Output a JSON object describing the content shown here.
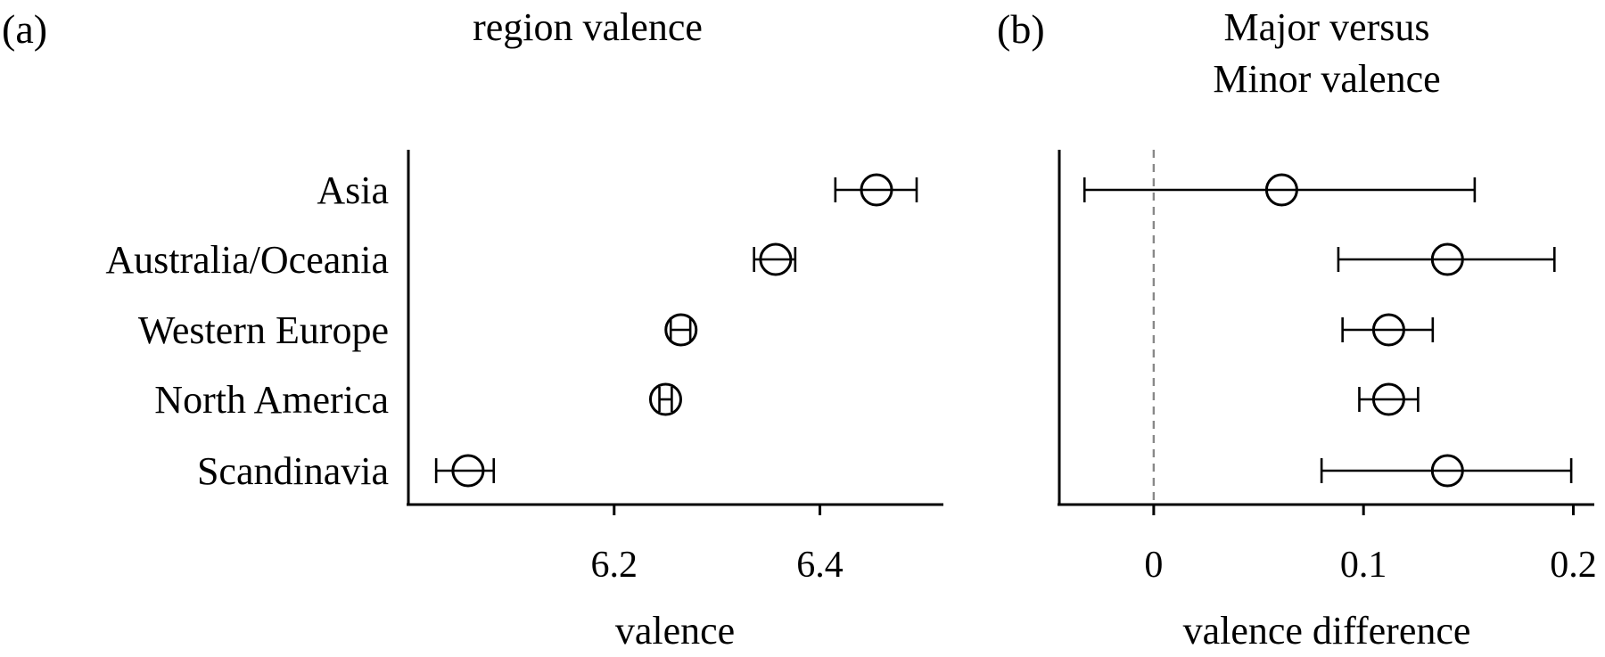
{
  "chart_data": [
    {
      "type": "scatter",
      "panel_label": "(a)",
      "title": "region valence",
      "xlabel": "valence",
      "ylabel": "",
      "categories": [
        "Asia",
        "Australia/Oceania",
        "Western Europe",
        "North America",
        "Scandinavia"
      ],
      "estimates": [
        6.455,
        6.357,
        6.265,
        6.25,
        6.058
      ],
      "ci_low": [
        6.415,
        6.336,
        6.255,
        6.244,
        6.027
      ],
      "ci_high": [
        6.494,
        6.376,
        6.274,
        6.256,
        6.083
      ],
      "xlim": [
        6.0,
        6.52
      ],
      "xticks": [
        6.2,
        6.4
      ],
      "xtick_labels": [
        "6.2",
        "6.4"
      ],
      "grid": false,
      "reference_line": null
    },
    {
      "type": "scatter",
      "panel_label": "(b)",
      "title": "Major versus Minor valence",
      "xlabel": "valence difference",
      "ylabel": "",
      "categories": [
        "Asia",
        "Australia/Oceania",
        "Western Europe",
        "North America",
        "Scandinavia"
      ],
      "estimates": [
        0.061,
        0.14,
        0.112,
        0.112,
        0.14
      ],
      "ci_low": [
        -0.033,
        0.088,
        0.09,
        0.098,
        0.08
      ],
      "ci_high": [
        0.153,
        0.191,
        0.133,
        0.126,
        0.199
      ],
      "xlim": [
        -0.045,
        0.21
      ],
      "xticks": [
        0,
        0.1,
        0.2
      ],
      "xtick_labels": [
        "0",
        "0.1",
        "0.2"
      ],
      "grid": false,
      "reference_line": 0
    }
  ],
  "colors": {
    "marks": "#000000",
    "reference_line": "#888888",
    "background": "#ffffff"
  }
}
